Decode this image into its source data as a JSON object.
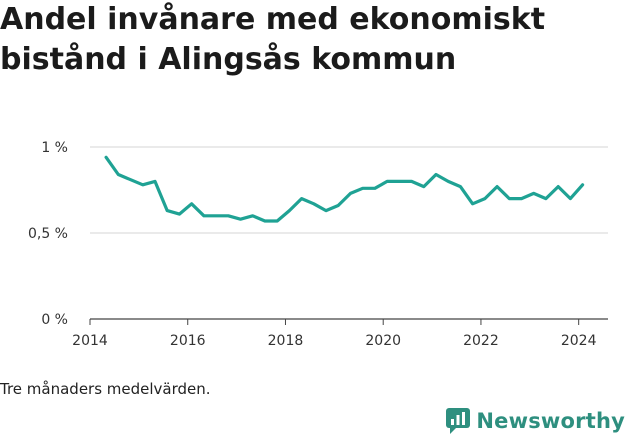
{
  "title": "Andel invånare med ekonomiskt bistånd i Alingsås kommun",
  "caption": "Tre månaders medelvärden.",
  "brand": {
    "name": "Newsworthy",
    "icon": "newsworthy-logo-icon",
    "color": "#2e8f7f"
  },
  "chart_data": {
    "type": "line",
    "title": "Andel invånare med ekonomiskt bistånd i Alingsås kommun",
    "xlabel": "",
    "ylabel": "",
    "xlim": [
      2014,
      2024.6
    ],
    "ylim": [
      0,
      1
    ],
    "xticks": [
      2014,
      2016,
      2018,
      2020,
      2022,
      2024
    ],
    "xtick_labels": [
      "2014",
      "2016",
      "2018",
      "2020",
      "2022",
      "2024"
    ],
    "yticks": [
      0,
      0.5,
      1
    ],
    "ytick_labels": [
      "0 %",
      "0,5 %",
      "1 %"
    ],
    "grid": "horizontal",
    "line_color": "#1fa294",
    "series": [
      {
        "x": [
          2014.33,
          2014.58,
          2014.83,
          2015.08,
          2015.33,
          2015.58,
          2015.83,
          2016.08,
          2016.33,
          2016.58,
          2016.83,
          2017.08,
          2017.33,
          2017.58,
          2017.83,
          2018.08,
          2018.33,
          2018.58,
          2018.83,
          2019.08,
          2019.33,
          2019.58,
          2019.83,
          2020.08,
          2020.33,
          2020.58,
          2020.83,
          2021.08,
          2021.33,
          2021.58,
          2021.83,
          2022.08,
          2022.33,
          2022.58,
          2022.83,
          2023.08,
          2023.33,
          2023.58,
          2023.83,
          2024.08
        ],
        "y": [
          0.94,
          0.84,
          0.81,
          0.78,
          0.8,
          0.63,
          0.61,
          0.67,
          0.6,
          0.6,
          0.6,
          0.58,
          0.6,
          0.57,
          0.57,
          0.63,
          0.7,
          0.67,
          0.63,
          0.66,
          0.73,
          0.76,
          0.76,
          0.8,
          0.8,
          0.8,
          0.77,
          0.84,
          0.8,
          0.77,
          0.67,
          0.7,
          0.77,
          0.7,
          0.7,
          0.73,
          0.7,
          0.77,
          0.7,
          0.78
        ]
      }
    ]
  }
}
